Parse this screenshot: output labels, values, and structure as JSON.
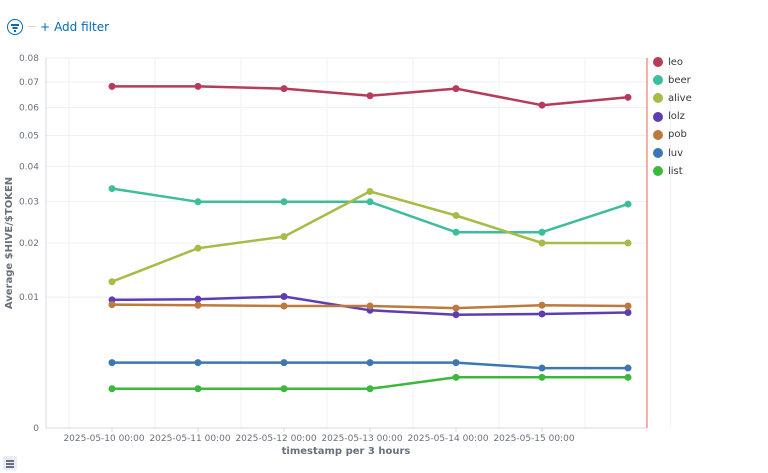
{
  "filter_bar": {
    "add_filter_label": "Add filter",
    "add_filter_plus": "+",
    "filter_icon": "filter-icon"
  },
  "legend_toggle_icon": "list-icon",
  "chart_data": {
    "type": "line",
    "xlabel": "timestamp per 3 hours",
    "ylabel": "Average $HIVE/$TOKEN",
    "x_ticks": [
      "2025-05-10 00:00",
      "2025-05-11 00:00",
      "2025-05-12 00:00",
      "2025-05-13 00:00",
      "2025-05-14 00:00",
      "2025-05-15 00:00"
    ],
    "x": [
      "2025-05-10 00:00",
      "2025-05-11 00:00",
      "2025-05-12 00:00",
      "2025-05-13 00:00",
      "2025-05-14 00:00",
      "2025-05-15 00:00",
      "2025-05-16 00:00"
    ],
    "y_scale": "sqrt",
    "y_ticks": [
      0,
      0.01,
      0.02,
      0.03,
      0.04,
      0.05,
      0.06,
      0.07,
      0.08
    ],
    "y_tick_labels": [
      "0",
      "0.01",
      "0.02",
      "0.03",
      "0.04",
      "0.05",
      "0.06",
      "0.07",
      "0.08"
    ],
    "ylim": [
      0,
      0.08
    ],
    "grid": true,
    "legend_position": "right",
    "series": [
      {
        "name": "leo",
        "color": "#b73c5c",
        "values": [
          0.0682,
          0.0682,
          0.0673,
          0.0645,
          0.0673,
          0.0609,
          0.0639
        ]
      },
      {
        "name": "beer",
        "color": "#3ebd9a",
        "values": [
          0.0335,
          0.0299,
          0.0299,
          0.0299,
          0.0224,
          0.0224,
          0.0293
        ]
      },
      {
        "name": "alive",
        "color": "#a6bc47",
        "values": [
          0.0125,
          0.0189,
          0.0214,
          0.0327,
          0.0264,
          0.02,
          0.02
        ]
      },
      {
        "name": "lolz",
        "color": "#5e3db3",
        "values": [
          0.0096,
          0.0097,
          0.0101,
          0.0081,
          0.0075,
          0.0076,
          0.0078
        ]
      },
      {
        "name": "pob",
        "color": "#bc7a3e",
        "values": [
          0.0089,
          0.0088,
          0.0087,
          0.0087,
          0.0084,
          0.0088,
          0.0087
        ]
      },
      {
        "name": "luv",
        "color": "#3d77b3",
        "values": [
          0.0025,
          0.0025,
          0.0025,
          0.0025,
          0.0025,
          0.0021,
          0.0021
        ]
      },
      {
        "name": "list",
        "color": "#3cb83c",
        "values": [
          0.0009,
          0.0009,
          0.0009,
          0.0009,
          0.0015,
          0.0015,
          0.0015
        ]
      }
    ]
  }
}
